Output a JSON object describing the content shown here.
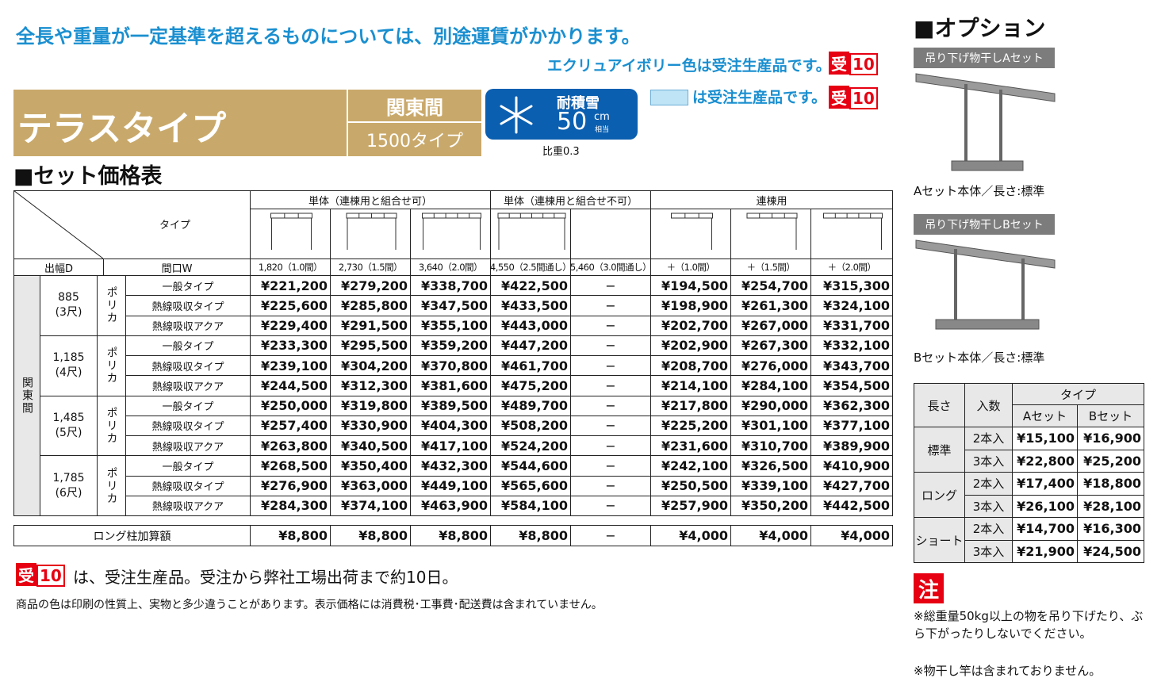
{
  "notice": "全長や重量が一定基準を超えるものについては、別途運賃がかかります。",
  "ecru_note": "エクリュアイボリー色は受注生産品です。",
  "badge": {
    "kanji": "受",
    "num": "10"
  },
  "header": {
    "title": "テラスタイプ",
    "region": "関東間",
    "size_type": "1500タイプ"
  },
  "snow": {
    "label": "耐積雪",
    "value": "50",
    "unit": "cm",
    "equiv": "相当",
    "gravity": "比重0.3"
  },
  "blue_note": "は受注生産品です。",
  "table": {
    "section": "■セット価格表",
    "groups": [
      "単体（連棟用と組合せ可）",
      "単体（連棟用と組合せ不可）",
      "連棟用"
    ],
    "type_label": "タイプ",
    "depth_label": "出幅D",
    "width_label": "間口W",
    "widths": [
      "1,820（1.0間）",
      "2,730（1.5間）",
      "3,640（2.0間）",
      "4,550（2.5間通し）",
      "5,460（3.0間通し）",
      "＋（1.0間）",
      "＋（1.5間）",
      "＋（2.0間）"
    ],
    "region": "関東間",
    "sections": [
      {
        "depth": "885",
        "shaku": "(3尺)",
        "material": "ポリカ",
        "rows": [
          {
            "type": "一般タイプ",
            "prices": [
              "¥221,200",
              "¥279,200",
              "¥338,700",
              "¥422,500",
              "−",
              "¥194,500",
              "¥254,700",
              "¥315,300"
            ]
          },
          {
            "type": "熱線吸収タイプ",
            "prices": [
              "¥225,600",
              "¥285,800",
              "¥347,500",
              "¥433,500",
              "−",
              "¥198,900",
              "¥261,300",
              "¥324,100"
            ]
          },
          {
            "type": "熱線吸収アクア",
            "prices": [
              "¥229,400",
              "¥291,500",
              "¥355,100",
              "¥443,000",
              "−",
              "¥202,700",
              "¥267,000",
              "¥331,700"
            ]
          }
        ]
      },
      {
        "depth": "1,185",
        "shaku": "(4尺)",
        "material": "ポリカ",
        "rows": [
          {
            "type": "一般タイプ",
            "prices": [
              "¥233,300",
              "¥295,500",
              "¥359,200",
              "¥447,200",
              "−",
              "¥202,900",
              "¥267,300",
              "¥332,100"
            ]
          },
          {
            "type": "熱線吸収タイプ",
            "prices": [
              "¥239,100",
              "¥304,200",
              "¥370,800",
              "¥461,700",
              "−",
              "¥208,700",
              "¥276,000",
              "¥343,700"
            ]
          },
          {
            "type": "熱線吸収アクア",
            "prices": [
              "¥244,500",
              "¥312,300",
              "¥381,600",
              "¥475,200",
              "−",
              "¥214,100",
              "¥284,100",
              "¥354,500"
            ]
          }
        ]
      },
      {
        "depth": "1,485",
        "shaku": "(5尺)",
        "material": "ポリカ",
        "rows": [
          {
            "type": "一般タイプ",
            "prices": [
              "¥250,000",
              "¥319,800",
              "¥389,500",
              "¥489,700",
              "−",
              "¥217,800",
              "¥290,000",
              "¥362,300"
            ]
          },
          {
            "type": "熱線吸収タイプ",
            "prices": [
              "¥257,400",
              "¥330,900",
              "¥404,300",
              "¥508,200",
              "−",
              "¥225,200",
              "¥301,100",
              "¥377,100"
            ]
          },
          {
            "type": "熱線吸収アクア",
            "prices": [
              "¥263,800",
              "¥340,500",
              "¥417,100",
              "¥524,200",
              "−",
              "¥231,600",
              "¥310,700",
              "¥389,900"
            ]
          }
        ]
      },
      {
        "depth": "1,785",
        "shaku": "(6尺)",
        "material": "ポリカ",
        "rows": [
          {
            "type": "一般タイプ",
            "prices": [
              "¥268,500",
              "¥350,400",
              "¥432,300",
              "¥544,600",
              "−",
              "¥242,100",
              "¥326,500",
              "¥410,900"
            ]
          },
          {
            "type": "熱線吸収タイプ",
            "prices": [
              "¥276,900",
              "¥363,000",
              "¥449,100",
              "¥565,600",
              "−",
              "¥250,500",
              "¥339,100",
              "¥427,700"
            ]
          },
          {
            "type": "熱線吸収アクア",
            "prices": [
              "¥284,300",
              "¥374,100",
              "¥463,900",
              "¥584,100",
              "−",
              "¥257,900",
              "¥350,200",
              "¥442,500"
            ]
          }
        ]
      }
    ],
    "long_pillar": {
      "label": "ロング柱加算額",
      "prices": [
        "¥8,800",
        "¥8,800",
        "¥8,800",
        "¥8,800",
        "−",
        "¥4,000",
        "¥4,000",
        "¥4,000"
      ]
    }
  },
  "footer": {
    "order_note": "は、受注生産品。受注から弊社工場出荷まで約10日。",
    "disclaimer": "商品の色は印刷の性質上、実物と多少違うことがあります。表示価格には消費税･工事費･配送費は含まれていません。"
  },
  "options": {
    "title": "■オプション",
    "a": {
      "label": "吊り下げ物干しAセット",
      "caption": "Aセット本体／長さ:標準"
    },
    "b": {
      "label": "吊り下げ物干しBセット",
      "caption": "Bセット本体／長さ:標準"
    },
    "table": {
      "length_label": "長さ",
      "count_label": "入数",
      "type_label": "タイプ",
      "set_labels": [
        "Aセット",
        "Bセット"
      ],
      "rows": [
        {
          "length": "標準",
          "items": [
            {
              "count": "2本入",
              "prices": [
                "¥15,100",
                "¥16,900"
              ]
            },
            {
              "count": "3本入",
              "prices": [
                "¥22,800",
                "¥25,200"
              ]
            }
          ]
        },
        {
          "length": "ロング",
          "items": [
            {
              "count": "2本入",
              "prices": [
                "¥17,400",
                "¥18,800"
              ]
            },
            {
              "count": "3本入",
              "prices": [
                "¥26,100",
                "¥28,100"
              ]
            }
          ]
        },
        {
          "length": "ショート",
          "items": [
            {
              "count": "2本入",
              "prices": [
                "¥14,700",
                "¥16,300"
              ]
            },
            {
              "count": "3本入",
              "prices": [
                "¥21,900",
                "¥24,500"
              ]
            }
          ]
        }
      ]
    }
  },
  "caution": {
    "mark": "注",
    "items": [
      "※総重量50kg以上の物を吊り下げたり、ぶら下がったりしないでください。",
      "※物干し竿は含まれておりません。"
    ]
  }
}
